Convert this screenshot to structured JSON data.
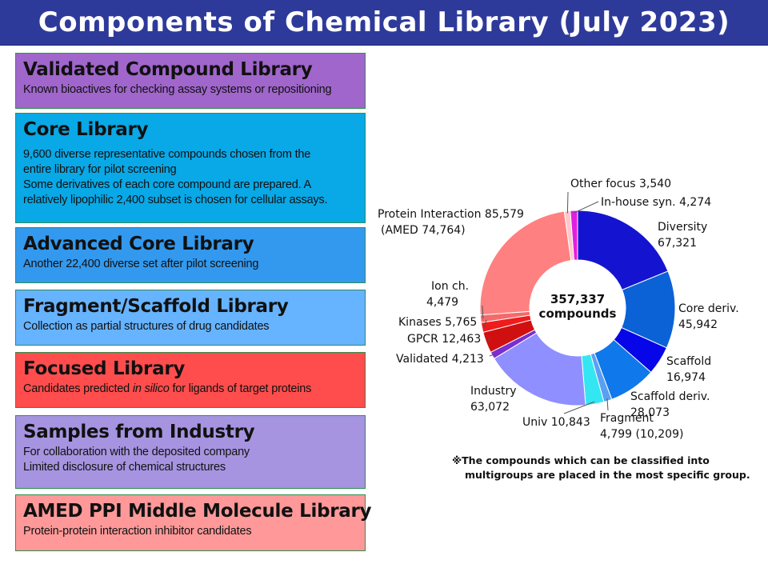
{
  "header": {
    "title": "Components of Chemical Library (July 2023)"
  },
  "libraries": [
    {
      "title": "Validated Compound Library",
      "color": "#a066cc",
      "desc": [
        "Known bioactives for checking assay systems or repositioning"
      ]
    },
    {
      "title": "Core Library",
      "color": "#09a8e6",
      "desc": [
        "9,600 diverse representative compounds chosen from the",
        "entire library for pilot screening",
        "Some derivatives of each core compound are prepared. A",
        "relatively lipophilic 2,400 subset is chosen for cellular assays."
      ]
    },
    {
      "title": "Advanced Core Library",
      "color": "#3399ee",
      "desc": [
        "Another 22,400 diverse set after pilot screening"
      ]
    },
    {
      "title": "Fragment/Scaffold Library",
      "color": "#66b3ff",
      "desc": [
        "Collection as partial structures of drug candidates"
      ]
    },
    {
      "title": "Focused Library",
      "color": "#ff4d4d",
      "desc_parts": [
        "Candidates predicted ",
        "in silico",
        " for ligands of target proteins"
      ]
    },
    {
      "title": "Samples from Industry",
      "color": "#a694e0",
      "desc": [
        "For collaboration with the deposited company",
        "Limited disclosure of chemical structures"
      ]
    },
    {
      "title": "AMED PPI Middle Molecule Library",
      "color": "#ff9999",
      "desc": [
        "Protein-protein interaction inhibitor candidates"
      ]
    }
  ],
  "chart_data": {
    "type": "pie",
    "donut": true,
    "center_label": [
      "357,337",
      "compounds"
    ],
    "slices": [
      {
        "name": "Diversity",
        "value": 67321,
        "color": "#1414d0",
        "label": [
          "Diversity",
          "67,321"
        ]
      },
      {
        "name": "Core deriv.",
        "value": 45942,
        "color": "#0a62d6",
        "label": [
          "Core deriv.",
          "45,942"
        ]
      },
      {
        "name": "Scaffold",
        "value": 16974,
        "color": "#0606e8",
        "label": [
          "Scaffold",
          "16,974"
        ]
      },
      {
        "name": "Scaffold deriv.",
        "value": 28073,
        "color": "#0f78ea",
        "label": [
          "Scaffold deriv.",
          "28,073"
        ]
      },
      {
        "name": "Fragment",
        "value": 4799,
        "color": "#5a9ff2",
        "label": [
          "Fragment",
          "4,799 (10,209)"
        ]
      },
      {
        "name": "Univ",
        "value": 10843,
        "color": "#33e6f2",
        "label": [
          "Univ 10,843"
        ]
      },
      {
        "name": "Industry",
        "value": 63072,
        "color": "#8f8fff",
        "label": [
          "Industry",
          "63,072"
        ]
      },
      {
        "name": "Validated",
        "value": 4213,
        "color": "#7a2ed1",
        "label": [
          "Validated 4,213"
        ]
      },
      {
        "name": "GPCR",
        "value": 12463,
        "color": "#d01010",
        "label": [
          "GPCR 12,463"
        ]
      },
      {
        "name": "Kinases",
        "value": 5765,
        "color": "#ee1c1c",
        "label": [
          "Kinases 5,765"
        ]
      },
      {
        "name": "Ion ch.",
        "value": 4479,
        "color": "#f46a6a",
        "label": [
          "Ion ch.",
          "4,479"
        ]
      },
      {
        "name": "Protein Interaction",
        "value": 85579,
        "color": "#ff8080",
        "label": [
          "Protein Interaction 85,579",
          "(AMED 74,764)"
        ]
      },
      {
        "name": "Other focus",
        "value": 3540,
        "color": "#ffc8c8",
        "label": [
          "Other focus 3,540"
        ]
      },
      {
        "name": "In-house syn.",
        "value": 4274,
        "color": "#e020e0",
        "label": [
          "In-house syn. 4,274"
        ]
      }
    ]
  },
  "footnote": [
    "※The compounds which can be classified into",
    "multigroups are placed in the most specific group."
  ]
}
